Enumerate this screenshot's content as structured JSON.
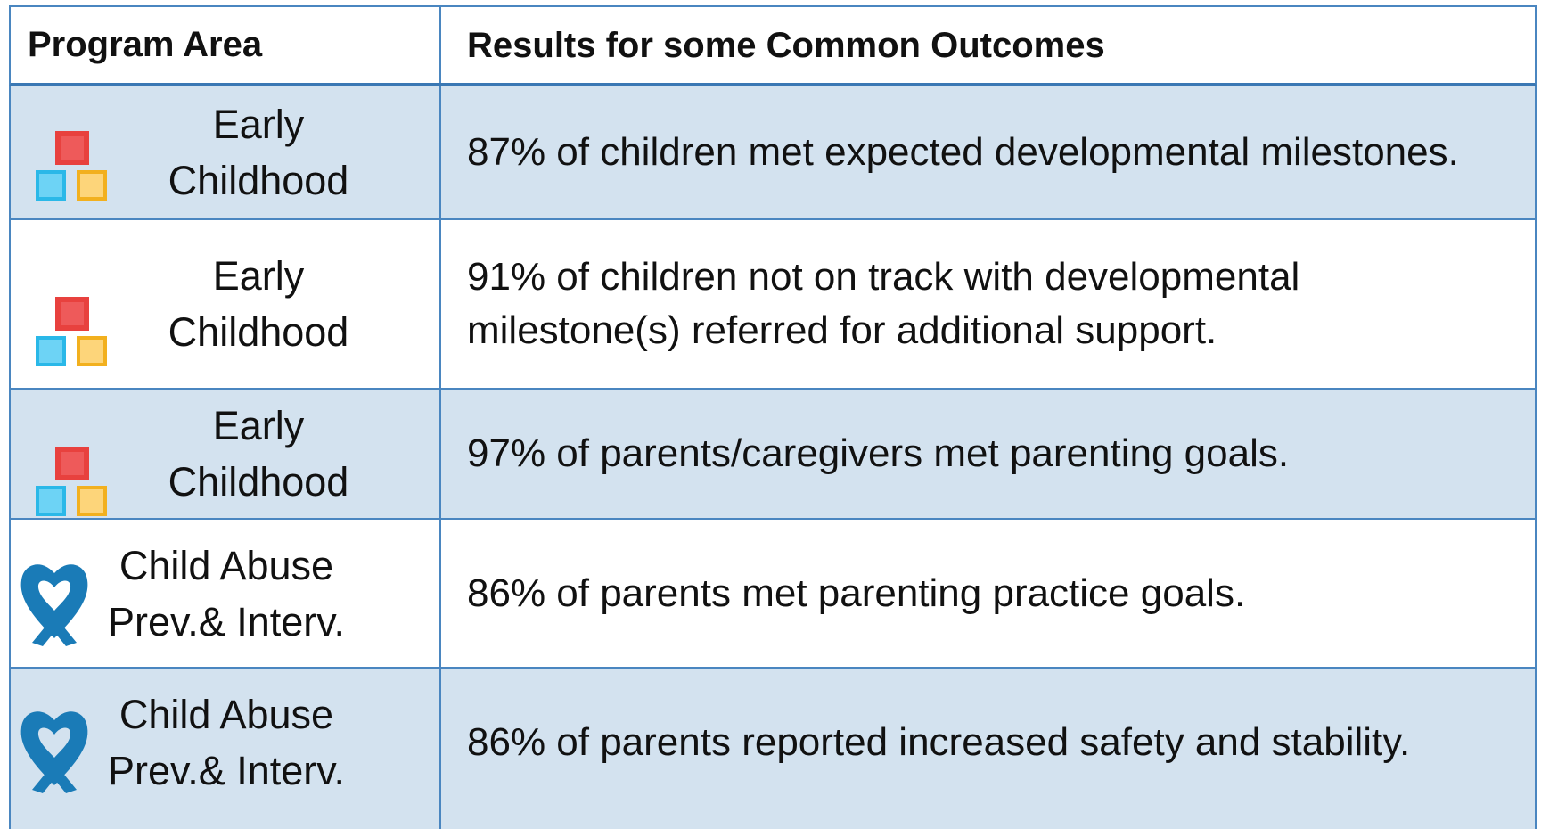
{
  "table": {
    "header": [
      "Program Area",
      "Results for some Common Outcomes"
    ],
    "rows": [
      [
        "Early Childhood",
        "87% of children met expected developmental milestones."
      ],
      [
        "Early Childhood",
        "91% of children not on track with developmental milestone(s) referred for additional support."
      ],
      [
        "Early Childhood",
        "97% of parents/caregivers met parenting goals."
      ],
      [
        "Child Abuse Prev.& Interv.",
        "86% of parents met parenting practice goals."
      ],
      [
        "Child Abuse Prev.& Interv.",
        "86% of parents reported increased safety and stability."
      ]
    ]
  }
}
